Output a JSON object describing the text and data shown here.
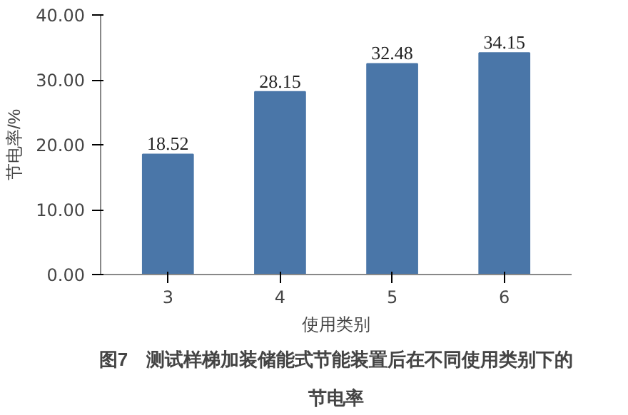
{
  "chart_data": {
    "type": "bar",
    "title": "图7　测试样梯加装储能式节能装置后在不同使用类别下的节电率",
    "xlabel": "使用类别",
    "ylabel": "节电率/%",
    "categories": [
      "3",
      "4",
      "5",
      "6"
    ],
    "values": [
      18.52,
      28.15,
      32.48,
      34.15
    ],
    "color": "#4a76a8",
    "data_labels": true,
    "ylim": [
      0,
      40
    ],
    "yticks": [
      {
        "value": 0,
        "label": "0.00"
      },
      {
        "value": 10,
        "label": "10.00"
      },
      {
        "value": 20,
        "label": "20.00"
      },
      {
        "value": 30,
        "label": "30.00"
      },
      {
        "value": 40,
        "label": "40.00"
      }
    ],
    "grid": false
  }
}
